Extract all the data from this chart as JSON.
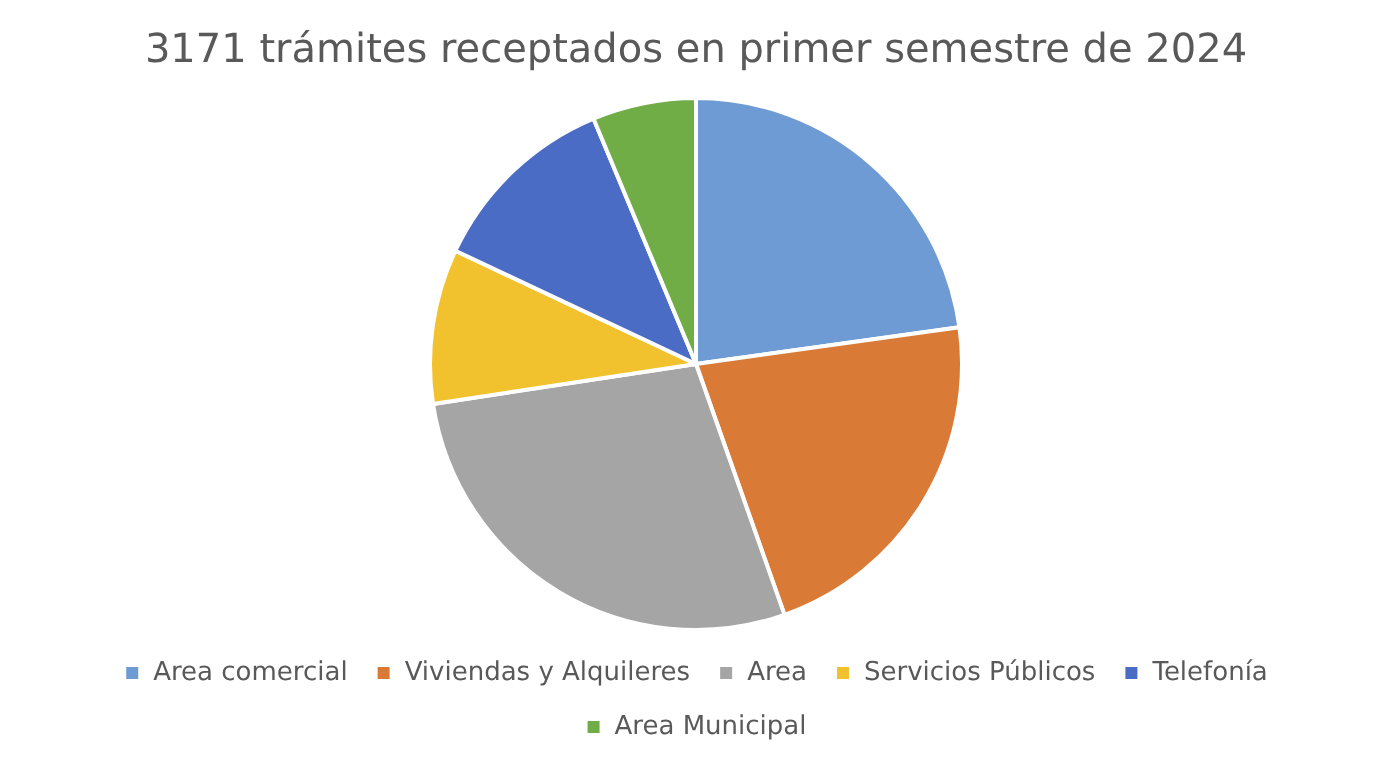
{
  "chart_data": {
    "type": "pie",
    "title": "3171 trámites receptados en primer semestre de 2024",
    "categories": [
      "Area comercial",
      "Viviendas y Alquileres",
      "Area",
      "Servicios Públicos",
      "Telefonía",
      "Area Municipal"
    ],
    "values": [
      22.8,
      21.8,
      28.0,
      9.4,
      11.7,
      6.3
    ],
    "colors": [
      "#6f9bd4",
      "#d97b37",
      "#a5a5a5",
      "#f2c12e",
      "#4a6cc4",
      "#70ad47"
    ],
    "legend": "bottom"
  }
}
